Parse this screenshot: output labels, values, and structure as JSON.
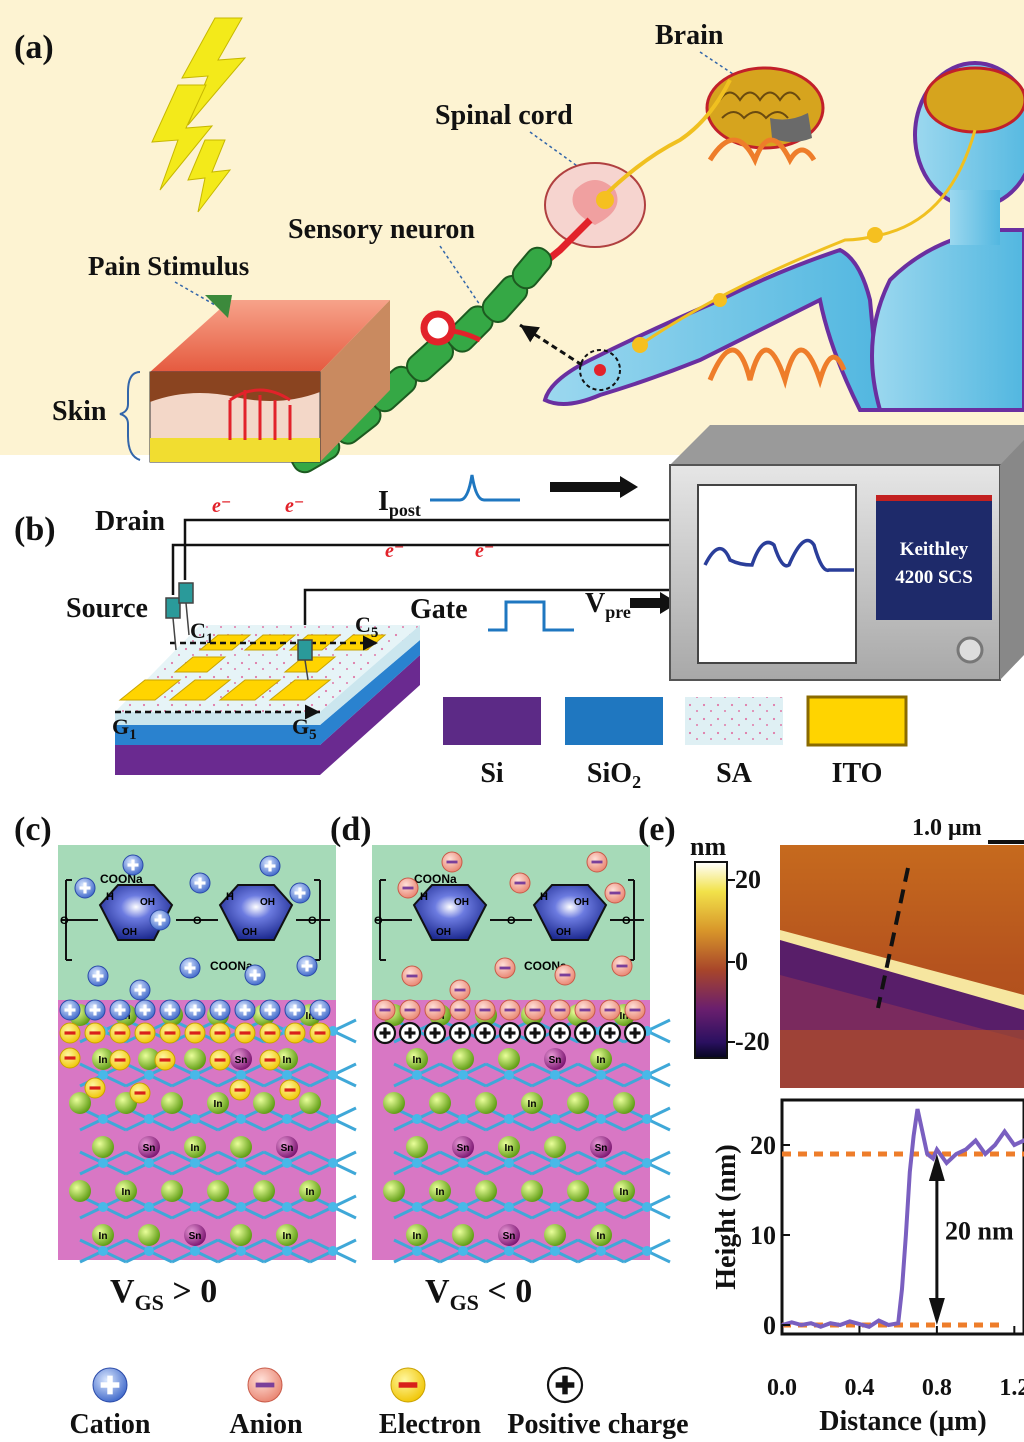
{
  "panels": {
    "a": "(a)",
    "b": "(b)",
    "c": "(c)",
    "d": "(d)",
    "e": "(e)"
  },
  "panel_a": {
    "brain": "Brain",
    "spinal_cord": "Spinal cord",
    "sensory_neuron": "Sensory neuron",
    "pain_stimulus": "Pain Stimulus",
    "skin": "Skin"
  },
  "panel_b": {
    "drain": "Drain",
    "source": "Source",
    "gate": "Gate",
    "electron": "e⁻",
    "ipost_main": "I",
    "ipost_sub": "post",
    "vpre_main": "V",
    "vpre_sub": "pre",
    "c1_main": "C",
    "c1_sub": "1",
    "c5_main": "C",
    "c5_sub": "5",
    "g1_main": "G",
    "g1_sub": "1",
    "g5_main": "G",
    "g5_sub": "5",
    "instrument_line1": "Keithley",
    "instrument_line2": "4200 SCS",
    "legend": [
      {
        "label": "Si",
        "color": "#5c2a86"
      },
      {
        "label": "SiO",
        "sub": "2",
        "color": "#1f77c0"
      },
      {
        "label": "SA",
        "color": "#dff0f4"
      },
      {
        "label": "ITO",
        "color": "#ffd400"
      }
    ]
  },
  "panel_c": {
    "condition_main": "V",
    "condition_sub": "GS",
    "condition_rel": " > 0",
    "group1": "COONa",
    "group2": "COONa",
    "atoms": {
      "in": "In",
      "sn": "Sn",
      "o": "O",
      "h": "H",
      "oh": "OH"
    }
  },
  "panel_d": {
    "condition_main": "V",
    "condition_sub": "GS",
    "condition_rel": " < 0",
    "group1": "COONa",
    "group2": "COONa"
  },
  "bottom_legend": [
    {
      "label": "Cation",
      "icon": "cation-icon"
    },
    {
      "label": "Anion",
      "icon": "anion-icon"
    },
    {
      "label": "Electron",
      "icon": "electron-icon"
    },
    {
      "label": "Positive charge",
      "icon": "positive-charge-icon"
    }
  ],
  "panel_e": {
    "scale_bar": "1.0 μm",
    "colorbar_unit": "nm",
    "colorbar_ticks": [
      "20",
      "0",
      "-20"
    ],
    "chart_data": {
      "type": "line",
      "xlabel": "Distance (μm)",
      "ylabel": "Height (nm)",
      "xlim": [
        0.0,
        1.4
      ],
      "ylim": [
        -1,
        25
      ],
      "xticks": [
        "0.0",
        "0.4",
        "0.8",
        "1.2"
      ],
      "yticks": [
        "0",
        "10",
        "20"
      ],
      "annotation": "20 nm",
      "reference_lines": [
        0,
        19
      ],
      "series": [
        {
          "color": "#7a5fc0",
          "x": [
            0.0,
            0.05,
            0.1,
            0.15,
            0.2,
            0.25,
            0.3,
            0.35,
            0.4,
            0.45,
            0.5,
            0.55,
            0.6,
            0.62,
            0.64,
            0.66,
            0.68,
            0.7,
            0.72,
            0.75,
            0.78,
            0.8,
            0.85,
            0.9,
            0.95,
            1.0,
            1.05,
            1.1,
            1.15,
            1.2,
            1.25,
            1.3,
            1.35,
            1.4
          ],
          "y": [
            0,
            0.3,
            0,
            0.2,
            -0.2,
            0.2,
            0,
            0.4,
            0.1,
            -0.2,
            0.5,
            0,
            0.2,
            4,
            10,
            17,
            21,
            24,
            22,
            19,
            18.5,
            19.5,
            18,
            19,
            19.5,
            20.5,
            19,
            20,
            21.5,
            20,
            20.5,
            21,
            20.2,
            21
          ]
        }
      ]
    }
  }
}
